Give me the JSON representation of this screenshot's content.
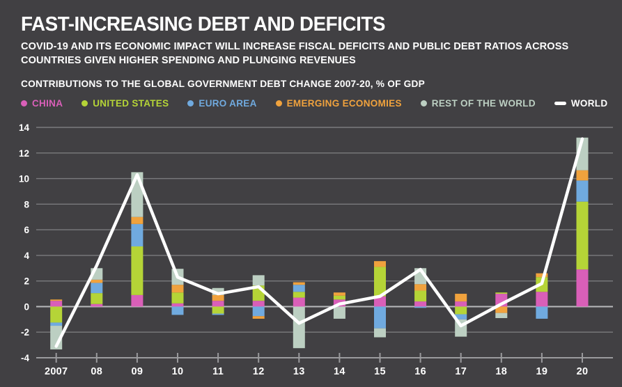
{
  "header": {
    "title": "FAST-INCREASING DEBT AND DEFICITS",
    "subtitle_lines": [
      "COVID-19 AND ITS ECONOMIC IMPACT WILL INCREASE FISCAL DEFICITS AND PUBLIC DEBT RATIOS ACROSS",
      "COUNTRIES GIVEN HIGHER SPENDING AND PLUNGING REVENUES"
    ]
  },
  "colors": {
    "background": "#414043",
    "china": "#d95fb8",
    "united_states": "#b5d437",
    "euro_area": "#70aadf",
    "emerging_economies": "#f0a23d",
    "rest_of_the_world": "#bccfc2",
    "world_line": "#ffffff",
    "grid": "#7b7b7e",
    "zero_line": "#b9babc",
    "axis": "#9a9a9d",
    "text": "#ffffff"
  },
  "chart_data": {
    "type": "bar",
    "subtype": "stacked-bar-with-line",
    "title": "CONTRIBUTIONS TO THE GLOBAL GOVERNMENT DEBT CHANGE 2007-20, % OF GDP",
    "ylabel": "% of GDP",
    "categories": [
      "2007",
      "08",
      "09",
      "10",
      "11",
      "12",
      "13",
      "14",
      "15",
      "16",
      "17",
      "18",
      "19",
      "20"
    ],
    "ylim": [
      -4,
      14
    ],
    "ytick_step": 2,
    "yticks": [
      14,
      12,
      10,
      8,
      6,
      4,
      2,
      0,
      -2,
      -4
    ],
    "grid": true,
    "legend_position": "top",
    "series": [
      {
        "name": "CHINA",
        "color": "#d95fb8",
        "values": [
          0.45,
          0.2,
          0.9,
          0.25,
          0.45,
          0.45,
          0.7,
          0.55,
          0.8,
          0.4,
          0.4,
          1.0,
          1.15,
          2.9
        ]
      },
      {
        "name": "UNITED STATES",
        "color": "#b5d437",
        "values": [
          -1.25,
          0.85,
          3.8,
          0.85,
          -0.55,
          1.2,
          0.45,
          0.3,
          2.3,
          0.85,
          -0.6,
          0.1,
          1.15,
          5.3
        ]
      },
      {
        "name": "EURO AREA",
        "color": "#70aadf",
        "values": [
          -0.25,
          0.8,
          1.75,
          -0.65,
          -0.1,
          -0.75,
          0.55,
          0,
          -1.7,
          -0.1,
          -0.4,
          0,
          -0.95,
          1.65
        ]
      },
      {
        "name": "EMERGING ECONOMIES",
        "color": "#f0a23d",
        "values": [
          0.1,
          0.25,
          0.55,
          0.6,
          0.45,
          -0.2,
          0.2,
          0.25,
          0.45,
          0.5,
          0.6,
          -0.5,
          0.3,
          0.8
        ]
      },
      {
        "name": "REST OF THE WORLD",
        "color": "#bccfc2",
        "values": [
          -1.85,
          0.9,
          3.5,
          1.25,
          0.55,
          0.8,
          -3.25,
          -0.95,
          -0.7,
          1.25,
          -1.35,
          -0.4,
          0,
          2.55
        ]
      }
    ],
    "line_series": {
      "name": "WORLD",
      "color": "#ffffff",
      "values": [
        -3.1,
        3.2,
        10.3,
        2.3,
        1.0,
        1.55,
        -1.3,
        0.2,
        0.8,
        2.9,
        -1.5,
        0.2,
        1.8,
        13.1
      ]
    }
  }
}
